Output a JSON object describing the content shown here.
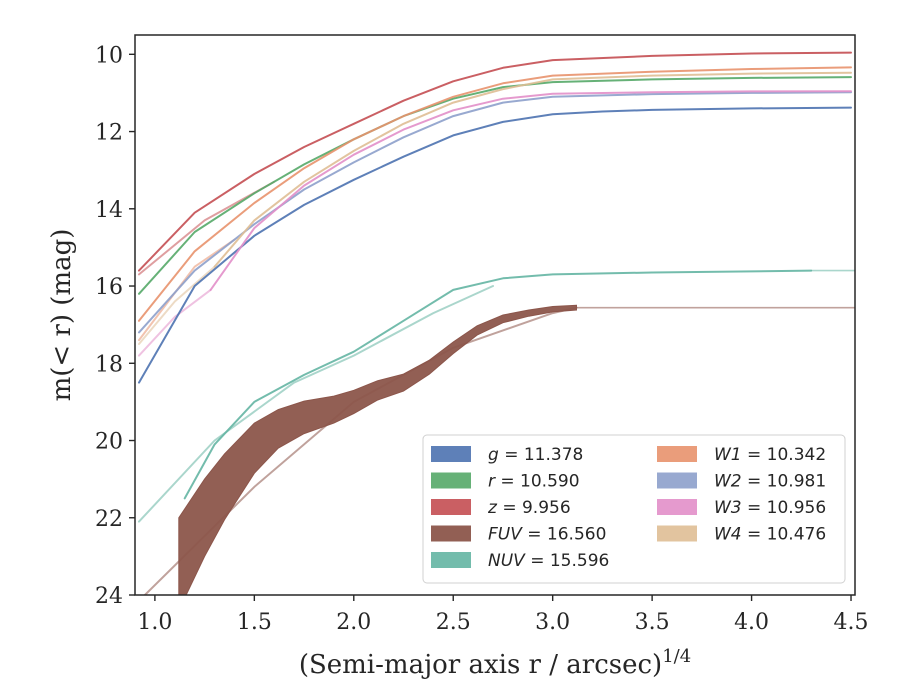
{
  "chart_data": {
    "type": "line",
    "xlabel": "(Semi-major axis r / arcsec)",
    "xlabel_sup": "1/4",
    "ylabel": "m(< r) (mag)",
    "xlim": [
      0.9,
      4.52
    ],
    "ylim": [
      24,
      9.5
    ],
    "y_inverted": true,
    "xticks": [
      "1.0",
      "1.5",
      "2.0",
      "2.5",
      "3.0",
      "3.5",
      "4.0",
      "4.5"
    ],
    "yticks": [
      "10",
      "12",
      "14",
      "16",
      "18",
      "20",
      "22",
      "24"
    ],
    "grid": false,
    "legend_position": "lower-right",
    "series": [
      {
        "name": "g = 11.378",
        "legend_var": "g",
        "legend_val": "= 11.378",
        "color": "#4c72b0",
        "x": [
          0.92,
          1.2,
          1.5,
          1.75,
          2.0,
          2.25,
          2.5,
          2.75,
          3.0,
          3.25,
          3.5,
          4.0,
          4.5
        ],
        "y": [
          18.5,
          16.0,
          14.7,
          13.9,
          13.25,
          12.65,
          12.1,
          11.75,
          11.55,
          11.48,
          11.44,
          11.4,
          11.38
        ],
        "width": 2.0
      },
      {
        "name": "r = 10.590",
        "legend_var": "r",
        "legend_val": "= 10.590",
        "color": "#55a868",
        "x": [
          0.92,
          1.2,
          1.5,
          1.75,
          2.0,
          2.25,
          2.5,
          2.75,
          3.0,
          3.5,
          4.0,
          4.5
        ],
        "y": [
          16.2,
          14.6,
          13.6,
          12.85,
          12.2,
          11.6,
          11.15,
          10.85,
          10.72,
          10.65,
          10.61,
          10.59
        ],
        "width": 2.0
      },
      {
        "name": "z = 9.956",
        "legend_var": "z",
        "legend_val": "= 9.956",
        "color": "#c44e52",
        "x": [
          0.92,
          1.2,
          1.5,
          1.75,
          2.0,
          2.25,
          2.5,
          2.75,
          3.0,
          3.5,
          4.0,
          4.5
        ],
        "y": [
          15.6,
          14.1,
          13.1,
          12.4,
          11.8,
          11.2,
          10.7,
          10.35,
          10.15,
          10.04,
          9.98,
          9.956
        ],
        "width": 2.0
      },
      {
        "name": "FUV = 16.560",
        "legend_var": "FUV",
        "legend_val": "= 16.560",
        "color": "#8c564b",
        "x": [
          1.12,
          1.25,
          1.35,
          1.5,
          1.62,
          1.75,
          1.9,
          2.0,
          2.12,
          2.25,
          2.38,
          2.5,
          2.62,
          2.75,
          2.88,
          3.0,
          3.12
        ],
        "y": [
          23.2,
          22.0,
          21.2,
          20.2,
          19.7,
          19.4,
          19.2,
          19.0,
          18.7,
          18.5,
          18.1,
          17.6,
          17.15,
          16.85,
          16.7,
          16.6,
          16.56
        ],
        "band": [
          1.2,
          1.0,
          0.85,
          0.65,
          0.5,
          0.42,
          0.35,
          0.3,
          0.25,
          0.22,
          0.18,
          0.15,
          0.12,
          0.1,
          0.08,
          0.07,
          0.06
        ]
      },
      {
        "name": "NUV = 15.596",
        "legend_var": "NUV",
        "legend_val": "= 15.596",
        "color": "#64b5a3",
        "x": [
          1.15,
          1.3,
          1.5,
          1.75,
          2.0,
          2.25,
          2.5,
          2.75,
          3.0,
          3.5,
          4.0,
          4.3
        ],
        "y": [
          21.5,
          20.1,
          19.0,
          18.3,
          17.7,
          16.9,
          16.1,
          15.8,
          15.7,
          15.65,
          15.62,
          15.6
        ],
        "width": 2.0
      },
      {
        "name": "W1 = 10.342",
        "legend_var": "W1",
        "legend_val": "= 10.342",
        "color": "#e8926d",
        "x": [
          0.92,
          1.2,
          1.5,
          1.75,
          2.0,
          2.25,
          2.5,
          2.75,
          3.0,
          3.5,
          4.0,
          4.5
        ],
        "y": [
          16.9,
          15.1,
          13.85,
          12.95,
          12.2,
          11.6,
          11.1,
          10.75,
          10.55,
          10.45,
          10.38,
          10.34
        ],
        "width": 2.0
      },
      {
        "name": "W2 = 10.981",
        "legend_var": "W2",
        "legend_val": "= 10.981",
        "color": "#8da0cb",
        "x": [
          0.92,
          1.2,
          1.5,
          1.75,
          2.0,
          2.25,
          2.5,
          2.75,
          3.0,
          3.5,
          4.0,
          4.5
        ],
        "y": [
          17.2,
          15.6,
          14.4,
          13.5,
          12.8,
          12.15,
          11.6,
          11.25,
          11.1,
          11.03,
          11.0,
          10.98
        ],
        "width": 2.0
      },
      {
        "name": "W3 = 10.956",
        "legend_var": "W3",
        "legend_val": "= 10.956",
        "color": "#e28fc9",
        "x": [
          1.28,
          1.5,
          1.75,
          2.0,
          2.25,
          2.5,
          2.75,
          3.0,
          3.5,
          4.0,
          4.5
        ],
        "y": [
          16.1,
          14.5,
          13.4,
          12.6,
          11.95,
          11.45,
          11.15,
          11.02,
          10.98,
          10.96,
          10.956
        ],
        "width": 2.0
      },
      {
        "name": "W4 = 10.476",
        "legend_var": "W4",
        "legend_val": "= 10.476",
        "color": "#dfbe95",
        "x": [
          1.3,
          1.5,
          1.75,
          2.0,
          2.25,
          2.5,
          2.75,
          3.0,
          3.5,
          4.0,
          4.5
        ],
        "y": [
          15.5,
          14.3,
          13.3,
          12.5,
          11.8,
          11.25,
          10.9,
          10.65,
          10.55,
          10.5,
          10.476
        ],
        "width": 2.0
      }
    ],
    "extrapolations": [
      {
        "color": "#8c564b",
        "x": [
          0.95,
          1.5,
          2.0,
          2.5,
          3.0,
          3.12
        ],
        "y": [
          24.0,
          21.2,
          19.0,
          17.6,
          16.7,
          16.56
        ],
        "width": 2.0
      },
      {
        "color": "#8c564b",
        "x": [
          3.12,
          4.52
        ],
        "y": [
          16.56,
          16.56
        ],
        "width": 1.6
      },
      {
        "color": "#64b5a3",
        "x": [
          0.92,
          1.3,
          1.7,
          2.0,
          2.4,
          2.7
        ],
        "y": [
          22.1,
          20.0,
          18.5,
          17.8,
          16.7,
          16.0
        ],
        "width": 2.0
      },
      {
        "color": "#64b5a3",
        "x": [
          4.3,
          4.52
        ],
        "y": [
          15.6,
          15.6
        ],
        "width": 1.6
      },
      {
        "color": "#c44e52",
        "x": [
          0.92,
          1.25,
          1.6
        ],
        "y": [
          15.7,
          14.3,
          13.3
        ],
        "width": 2.0
      },
      {
        "color": "#e8926d",
        "x": [
          0.92,
          1.2,
          1.4
        ],
        "y": [
          17.4,
          15.5,
          14.8
        ],
        "width": 2.0
      },
      {
        "color": "#e28fc9",
        "x": [
          0.92,
          1.1,
          1.28
        ],
        "y": [
          17.8,
          16.8,
          16.1
        ],
        "width": 2.0
      },
      {
        "color": "#dfbe95",
        "x": [
          0.92,
          1.1,
          1.3
        ],
        "y": [
          17.5,
          16.4,
          15.5
        ],
        "width": 2.0
      }
    ]
  }
}
